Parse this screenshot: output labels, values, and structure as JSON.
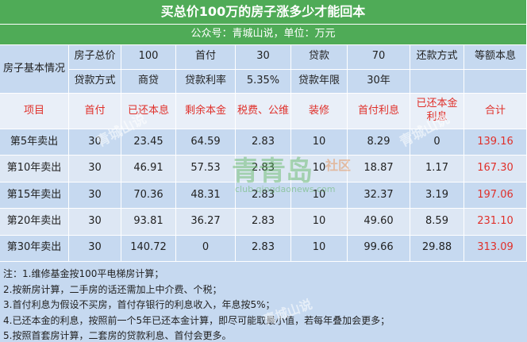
{
  "header": {
    "title": "买总价100万的房子涨多少才能回本",
    "subtitle": "公众号：青城山说，单位：万元"
  },
  "info": {
    "label": "房子基本情况",
    "rows": [
      [
        "房子总价",
        "100",
        "首付",
        "30",
        "贷款",
        "70",
        "还款方式",
        "等额本息"
      ],
      [
        "贷款方式",
        "商贷",
        "贷款利率",
        "5.35%",
        "贷款年限",
        "30年"
      ]
    ]
  },
  "table": {
    "columns": [
      "项目",
      "首付",
      "已还本息",
      "剩余本金",
      "税费、公维",
      "装修",
      "首付利息",
      "已还本金利息",
      "合计"
    ],
    "rows": [
      [
        "第5年卖出",
        "30",
        "23.45",
        "64.59",
        "2.83",
        "10",
        "8.29",
        "0",
        "139.16"
      ],
      [
        "第10年卖出",
        "30",
        "46.91",
        "57.53",
        "2.83",
        "10",
        "18.87",
        "1.17",
        "167.30"
      ],
      [
        "第15年卖出",
        "30",
        "70.36",
        "48.31",
        "2.83",
        "10",
        "32.37",
        "3.19",
        "197.06"
      ],
      [
        "第20年卖出",
        "30",
        "93.81",
        "36.27",
        "2.83",
        "10",
        "49.60",
        "8.59",
        "231.10"
      ],
      [
        "第30年卖出",
        "30",
        "140.72",
        "0",
        "2.83",
        "10",
        "99.66",
        "29.88",
        "313.09"
      ]
    ]
  },
  "notes": [
    "注：1.维修基金按100平电梯房计算；",
    "2.按新房计算，二手房的话还需加上中介费、个税；",
    "3.首付利息为假设不买房，首付存银行的利息收入，年息按5%；",
    "4.已还本金的利息，按照前一个5年已还本金计算，即尽可能取最小值，若每年叠加会更多；",
    "5.按照首套房计算，二套房的贷款利息、首付会更多。"
  ],
  "watermark": {
    "text": "青城山说",
    "logo": "青青岛",
    "logo_sub": "社区",
    "url": "club.qingdaonews.com"
  }
}
